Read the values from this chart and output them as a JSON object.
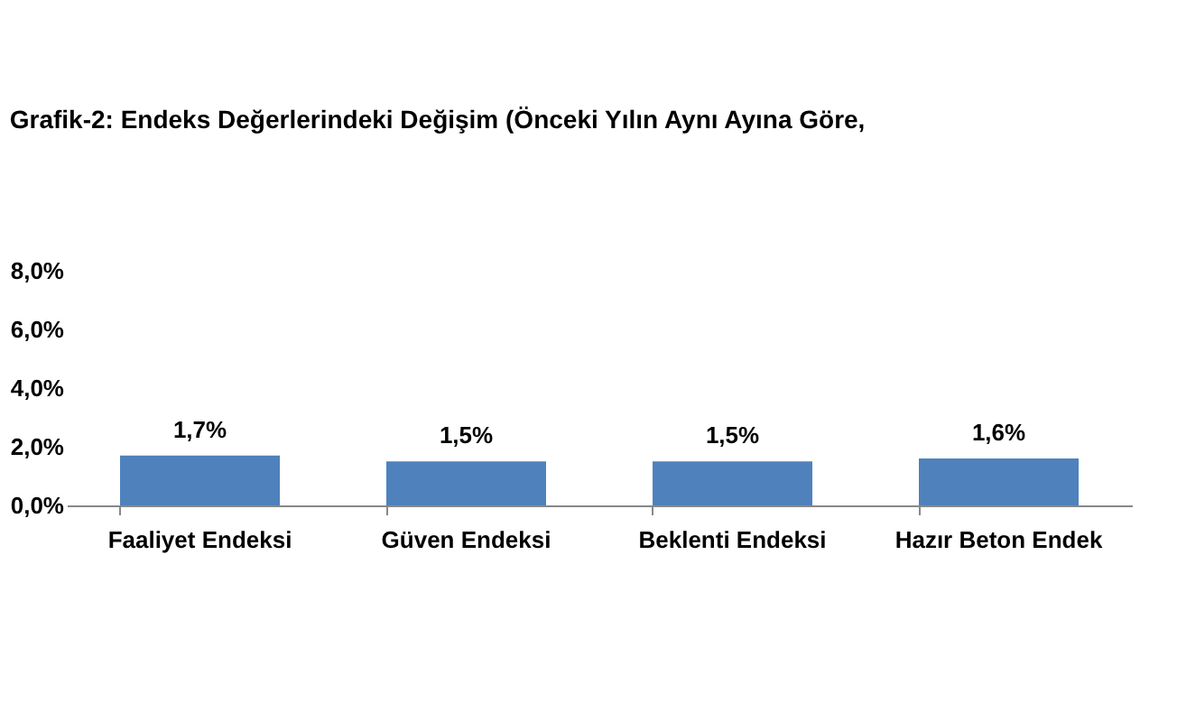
{
  "chart_data": {
    "type": "bar",
    "title": "Grafik-2: Endeks Değerlerindeki Değişim (Önceki Yılın Aynı Ayına Göre,",
    "categories": [
      "Faaliyet Endeksi",
      "Güven Endeksi",
      "Beklenti Endeksi",
      "Hazır Beton Endek"
    ],
    "values": [
      1.7,
      1.5,
      1.5,
      1.6
    ],
    "color": "#4f81bd",
    "value_labels": [
      "1,7%",
      "1,5%",
      "1,5%",
      "1,6%"
    ],
    "ylim": [
      0,
      8
    ],
    "yticks": [
      {
        "value": 0,
        "label": "0,0%"
      },
      {
        "value": 2,
        "label": "2,0%"
      },
      {
        "value": 4,
        "label": "4,0%"
      },
      {
        "value": 6,
        "label": "6,0%"
      },
      {
        "value": 8,
        "label": "8,0%"
      }
    ],
    "grid": false
  }
}
